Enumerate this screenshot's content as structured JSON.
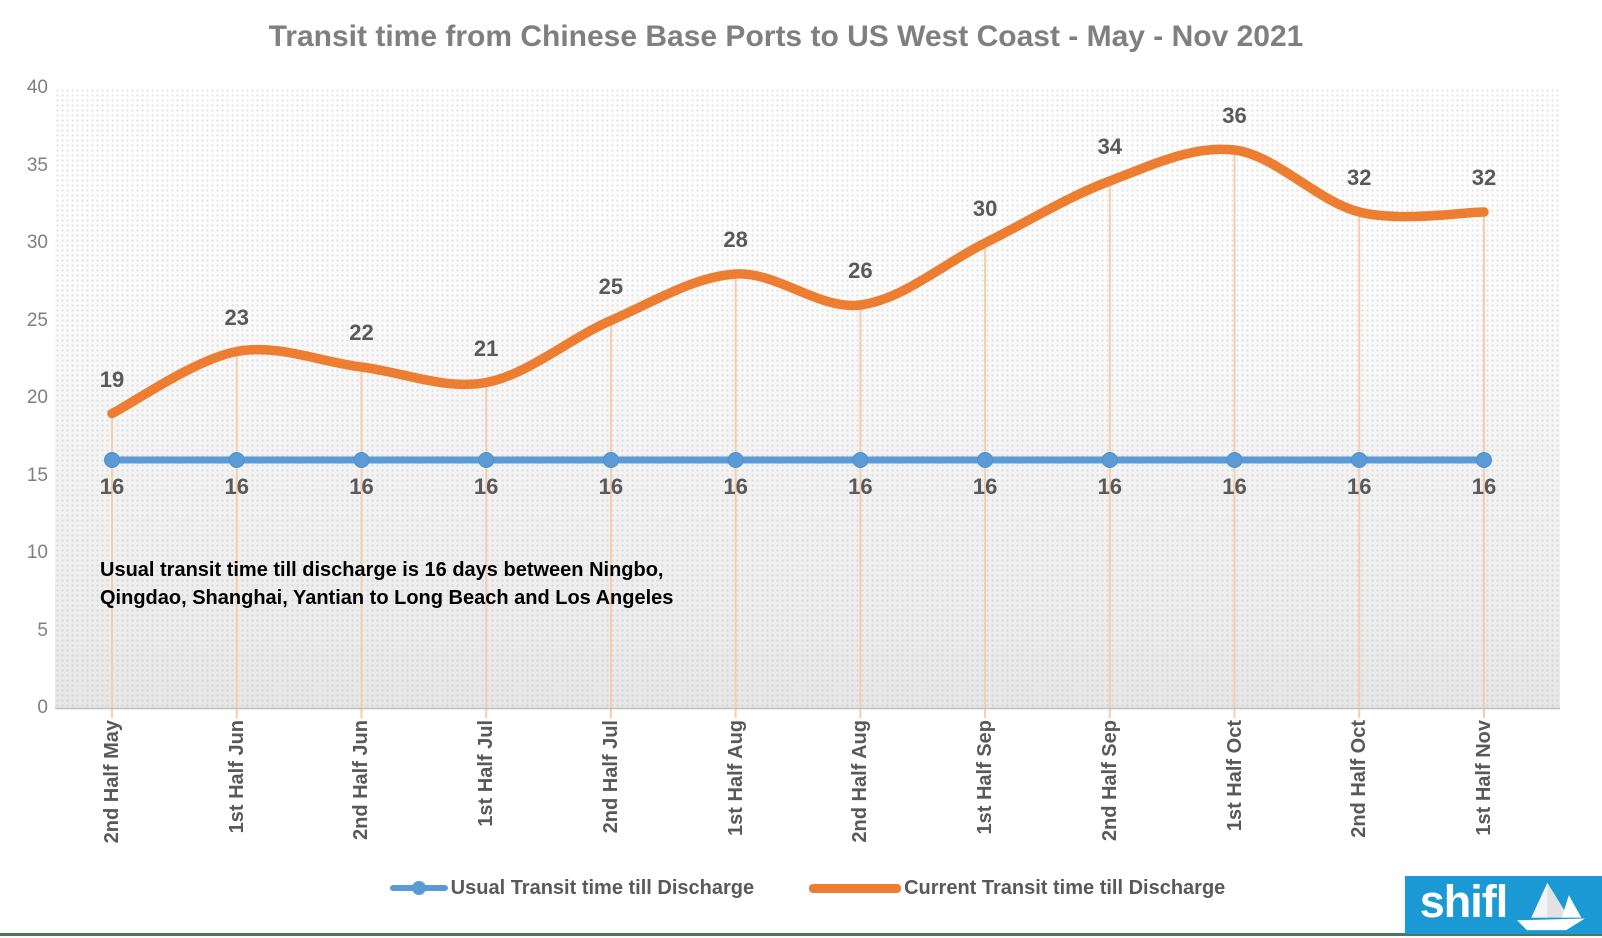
{
  "title": "Transit time from Chinese Base Ports to US West Coast - May - Nov 2021",
  "annotation": {
    "lines": [
      "Usual transit time till discharge is 16 days between Ningbo,",
      "Qingdao, Shanghai, Yantian to Long Beach and Los Angeles"
    ]
  },
  "legend": {
    "items": [
      {
        "label": "Usual Transit time till Discharge",
        "color": "#5B9BD5",
        "marker": "line-with-dot"
      },
      {
        "label": "Current Transit time till Discharge",
        "color": "#ED7D31",
        "marker": "thick-line"
      }
    ]
  },
  "logo": {
    "text": "shifl",
    "icon": "paper-boat-icon",
    "background": "#1B99D5"
  },
  "colors": {
    "title_text": "#7F7F7F",
    "axis_tick_text": "#7F7F7F",
    "data_label_text": "#595959",
    "usual_series": "#5B9BD5",
    "current_series": "#ED7D31",
    "drop_lines": "#F8CDAC",
    "axis_line": "#BFBFBF",
    "footer_rule": "#4A785C",
    "logo_background": "#1B99D5"
  },
  "chart_data": {
    "type": "line",
    "title": "Transit time from Chinese Base Ports to US West Coast - May - Nov 2021",
    "categories": [
      "2nd Half May",
      "1st Half Jun",
      "2nd Half Jun",
      "1st Half Jul",
      "2nd Half Jul",
      "1st Half Aug",
      "2nd Half Aug",
      "1st Half Sep",
      "2nd Half Sep",
      "1st Half Oct",
      "2nd Half Oct",
      "1st Half Nov"
    ],
    "series": [
      {
        "name": "Usual Transit time till Discharge",
        "line_style": "straight",
        "markers": "circle",
        "color": "#5B9BD5",
        "values": [
          16,
          16,
          16,
          16,
          16,
          16,
          16,
          16,
          16,
          16,
          16,
          16
        ]
      },
      {
        "name": "Current Transit time till Discharge",
        "line_style": "smooth",
        "markers": "none",
        "color": "#ED7D31",
        "values": [
          19,
          23,
          22,
          21,
          25,
          28,
          26,
          30,
          34,
          36,
          32,
          32
        ]
      }
    ],
    "xlabel": "",
    "ylabel": "",
    "ylim": [
      0,
      40
    ],
    "yticks": [
      0,
      5,
      10,
      15,
      20,
      25,
      30,
      35,
      40
    ],
    "grid": false,
    "data_labels": true,
    "drop_lines": true,
    "legend_position": "bottom"
  }
}
